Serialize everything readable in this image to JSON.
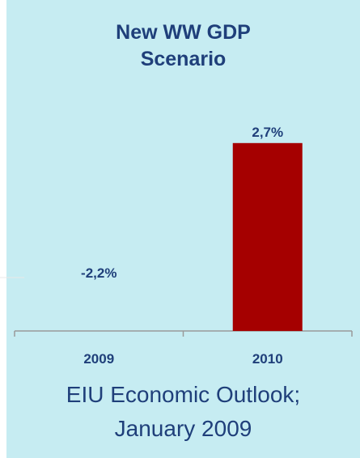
{
  "chart_data": {
    "type": "bar",
    "title_lines": [
      "New WW GDP",
      "Scenario"
    ],
    "categories": [
      "2009",
      "2010"
    ],
    "values": [
      -2.2,
      2.7
    ],
    "value_labels": [
      "-2,2%",
      "2,7%"
    ],
    "bar_colors": [
      "#c6ecf2",
      "#a50000"
    ],
    "xlabel": "",
    "ylabel": "",
    "grid": false,
    "legend": "none"
  },
  "footer": {
    "lines": [
      "EIU Economic Outlook;",
      "January 2009"
    ]
  },
  "colors": {
    "background": "#c6ecf2",
    "text": "#1f3f7a",
    "axis": "#9a9a9a"
  }
}
